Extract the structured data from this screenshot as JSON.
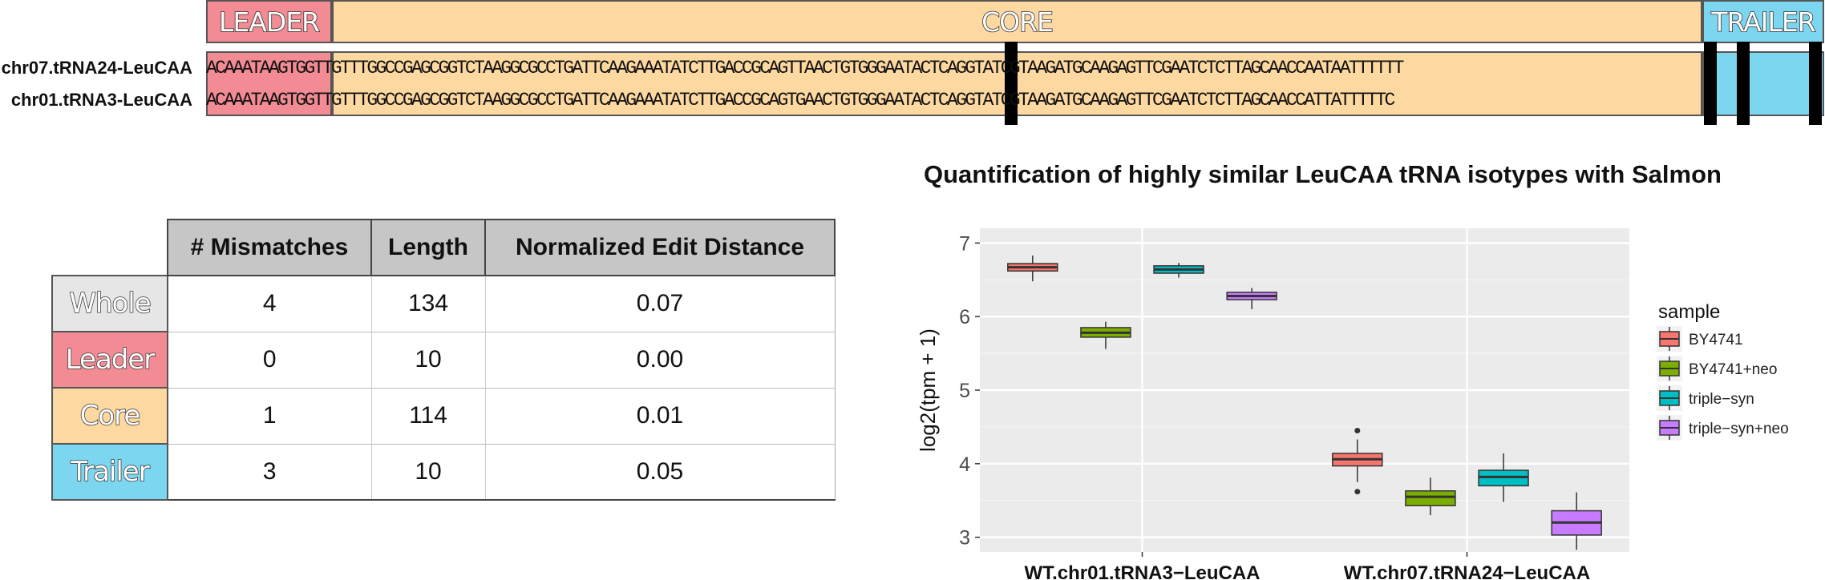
{
  "alignment": {
    "segments": {
      "leader": "LEADER",
      "core": "CORE",
      "trailer": "TRAILER"
    },
    "sequences": [
      {
        "name": "chr07.tRNA24-LeuCAA",
        "sequence": "ACAAATAAGTGGTTGTTTGGCCGAGCGGTCTAAGGCGCCTGATTCAAGAAATATCTTGACCGCAGTTAACTGTGGGAATACTCAGGTATCGTAAGATGCAAGAGTTCGAATCTCTTAGCAACCAATAATTTTTT"
      },
      {
        "name": "chr01.tRNA3-LeuCAA",
        "sequence": "ACAAATAAGTGGTTGTTTGGCCGAGCGGTCTAAGGCGCCTGATTCAAGAAATATCTTGACCGCAGTGAACTGTGGGAATACTCAGGTATCGTAAGATGCAAGAGTTCGAATCTCTTAGCAACCATTATTTTTC"
      }
    ],
    "colors": {
      "leader": "#f28b93",
      "core": "#fdd8a0",
      "trailer": "#7dd6ef"
    }
  },
  "table": {
    "headers": [
      "# Mismatches",
      "Length",
      "Normalized Edit Distance"
    ],
    "rows": [
      {
        "label": "Whole",
        "mismatches": "4",
        "length": "134",
        "ned": "0.07",
        "color": "#e6e6e6"
      },
      {
        "label": "Leader",
        "mismatches": "0",
        "length": "10",
        "ned": "0.00",
        "color": "#f28b93"
      },
      {
        "label": "Core",
        "mismatches": "1",
        "length": "114",
        "ned": "0.01",
        "color": "#fdd8a0"
      },
      {
        "label": "Trailer",
        "mismatches": "3",
        "length": "10",
        "ned": "0.05",
        "color": "#7dd6ef"
      }
    ]
  },
  "chart_data": {
    "type": "boxplot",
    "title": "Quantification of highly similar LeuCAA tRNA isotypes with Salmon",
    "xlabel": "",
    "ylabel": "log2(tpm + 1)",
    "ylim": [
      2.8,
      7.2
    ],
    "yticks": [
      3,
      4,
      5,
      6,
      7
    ],
    "categories": [
      "WT.chr01.tRNA3−LeuCAA",
      "WT.chr07.tRNA24−LeuCAA"
    ],
    "legend_title": "sample",
    "legend_position": "right",
    "grid": true,
    "series": [
      {
        "name": "BY4741",
        "color": "#f8766d",
        "boxes": [
          {
            "min": 6.48,
            "q1": 6.62,
            "median": 6.67,
            "q3": 6.72,
            "max": 6.83,
            "outliers": []
          },
          {
            "min": 3.75,
            "q1": 3.97,
            "median": 4.06,
            "q3": 4.14,
            "max": 4.33,
            "outliers": [
              4.45,
              3.62
            ]
          }
        ]
      },
      {
        "name": "BY4741+neo",
        "color": "#7cae00",
        "boxes": [
          {
            "min": 5.56,
            "q1": 5.72,
            "median": 5.78,
            "q3": 5.85,
            "max": 5.93,
            "outliers": []
          },
          {
            "min": 3.3,
            "q1": 3.43,
            "median": 3.55,
            "q3": 3.63,
            "max": 3.81,
            "outliers": []
          }
        ]
      },
      {
        "name": "triple−syn",
        "color": "#00bfc4",
        "boxes": [
          {
            "min": 6.53,
            "q1": 6.59,
            "median": 6.64,
            "q3": 6.69,
            "max": 6.73,
            "outliers": []
          },
          {
            "min": 3.48,
            "q1": 3.7,
            "median": 3.82,
            "q3": 3.91,
            "max": 4.14,
            "outliers": []
          }
        ]
      },
      {
        "name": "triple−syn+neo",
        "color": "#c77cff",
        "boxes": [
          {
            "min": 6.1,
            "q1": 6.23,
            "median": 6.28,
            "q3": 6.33,
            "max": 6.39,
            "outliers": []
          },
          {
            "min": 2.83,
            "q1": 3.03,
            "median": 3.2,
            "q3": 3.36,
            "max": 3.61,
            "outliers": []
          }
        ]
      }
    ]
  }
}
